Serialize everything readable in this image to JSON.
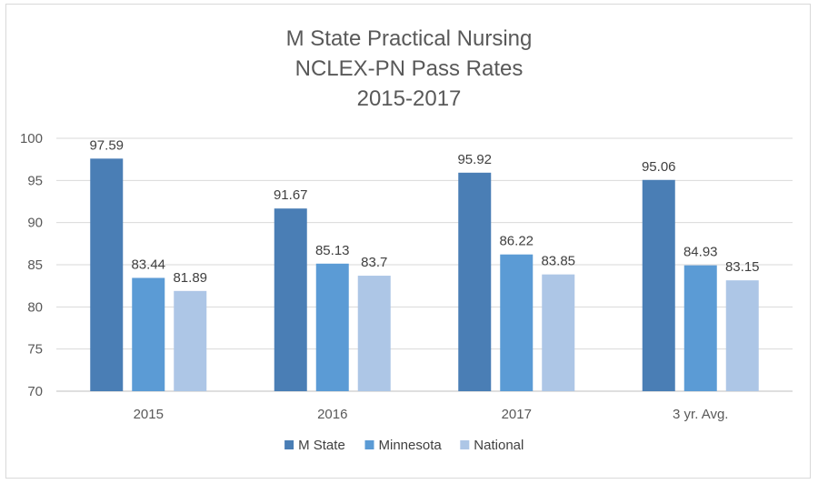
{
  "chart_data": {
    "type": "bar",
    "title_lines": [
      "M State Practical Nursing",
      "NCLEX-PN Pass Rates",
      "2015-2017"
    ],
    "categories": [
      "2015",
      "2016",
      "2017",
      "3 yr. Avg."
    ],
    "series": [
      {
        "name": "M State",
        "color": "#4a7eb5",
        "values": [
          97.59,
          91.67,
          95.92,
          95.06
        ],
        "labels": [
          "97.59",
          "91.67",
          "95.92",
          "95.06"
        ]
      },
      {
        "name": "Minnesota",
        "color": "#5b9bd5",
        "values": [
          83.44,
          85.13,
          86.22,
          84.93
        ],
        "labels": [
          "83.44",
          "85.13",
          "86.22",
          "84.93"
        ]
      },
      {
        "name": "National",
        "color": "#adc6e6",
        "values": [
          81.89,
          83.7,
          83.85,
          83.15
        ],
        "labels": [
          "81.89",
          "83.7",
          "83.85",
          "83.15"
        ]
      }
    ],
    "ylim": [
      70,
      100
    ],
    "yticks": [
      70,
      75,
      80,
      85,
      90,
      95,
      100
    ],
    "grid": true,
    "legend_position": "bottom",
    "xlabel": "",
    "ylabel": ""
  }
}
